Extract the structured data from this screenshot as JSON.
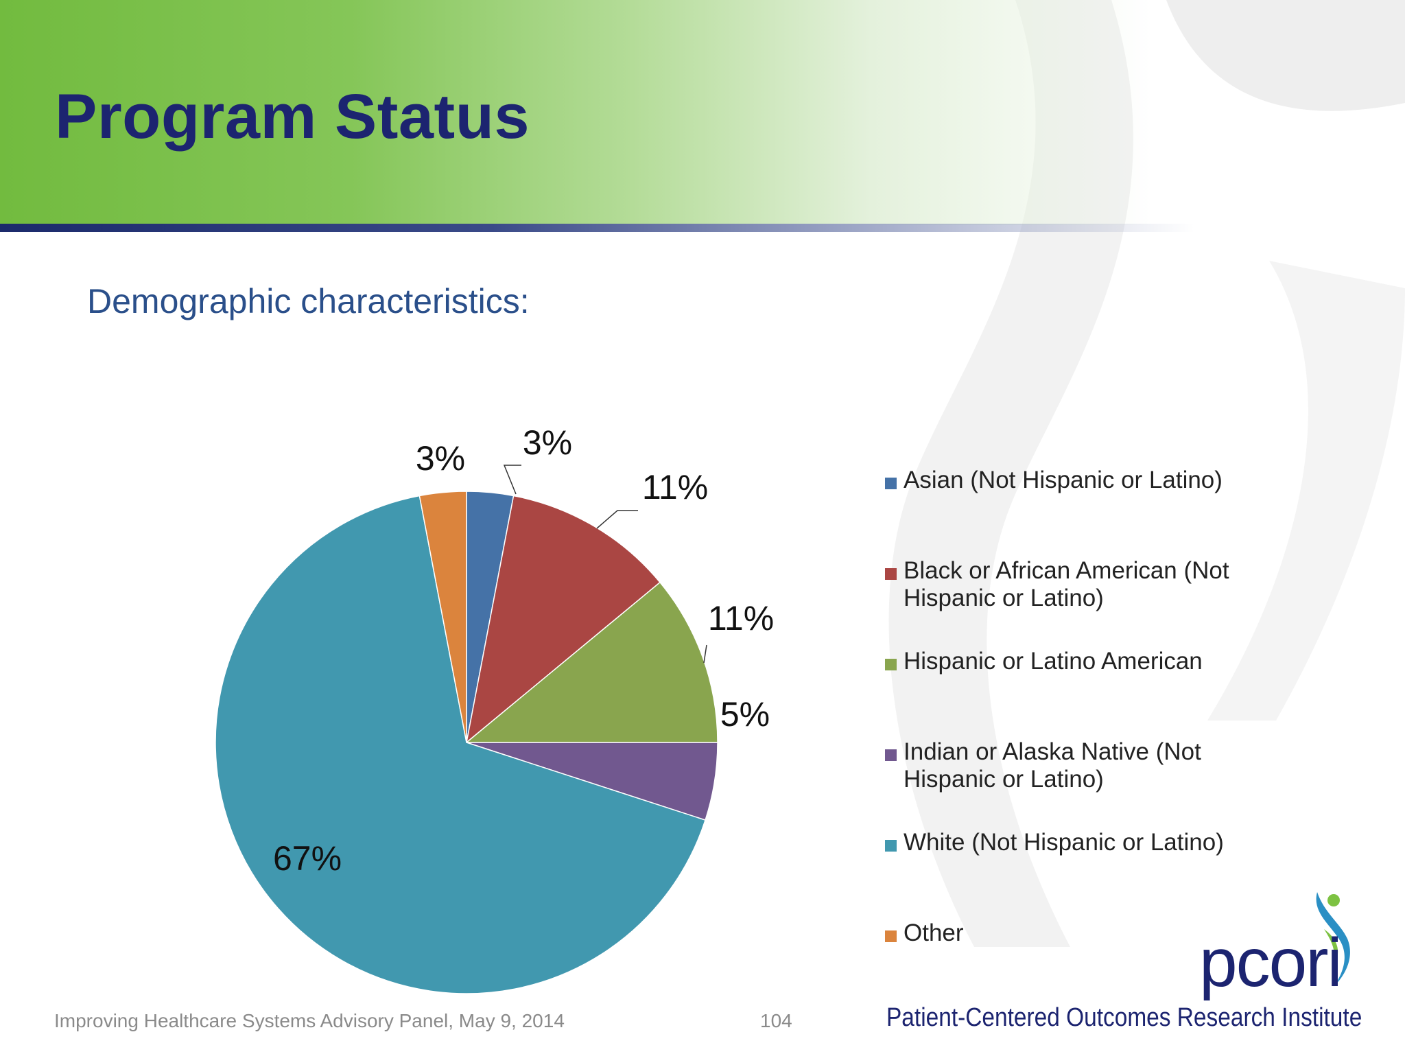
{
  "slide": {
    "title": "Program Status",
    "subtitle": "Demographic characteristics:",
    "footer_text": "Improving Healthcare Systems Advisory Panel, May 9, 2014",
    "page_number": "104"
  },
  "logo": {
    "wordmark": "pcori",
    "tagline": "Patient-Centered Outcomes Research Institute"
  },
  "colors": {
    "header_green": "#72bb3f",
    "title_navy": "#1c2470",
    "subtitle_blue": "#2a4f8a"
  },
  "chart_data": {
    "type": "pie",
    "title": "",
    "start_angle_deg": 0,
    "direction": "clockwise",
    "legend_position": "right",
    "slices": [
      {
        "name": "Asian (Not Hispanic or Latino)",
        "value": 3,
        "label": "3%",
        "color": "#4572a7"
      },
      {
        "name": "Black or African American (Not Hispanic or Latino)",
        "value": 11,
        "label": "11%",
        "color": "#aa4643"
      },
      {
        "name": "Hispanic or Latino American",
        "value": 11,
        "label": "11%",
        "color": "#89a54e"
      },
      {
        "name": "Indian or Alaska Native (Not Hispanic or Latino)",
        "value": 5,
        "label": "5%",
        "color": "#71588f"
      },
      {
        "name": "White (Not Hispanic or Latino)",
        "value": 67,
        "label": "67%",
        "color": "#4198af"
      },
      {
        "name": "Other",
        "value": 3,
        "label": "3%",
        "color": "#db843d"
      }
    ]
  }
}
